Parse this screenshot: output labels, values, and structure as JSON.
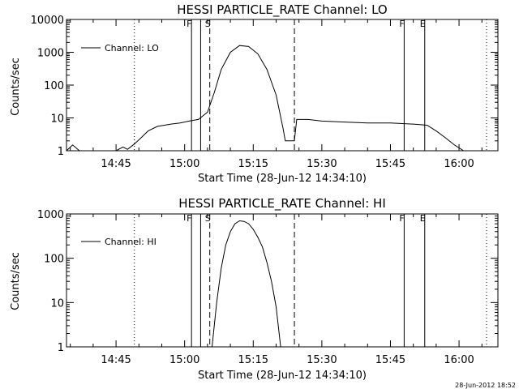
{
  "footer": {
    "timestamp": "28-Jun-2012 18:52"
  },
  "chart_data": [
    {
      "type": "line",
      "title": "HESSI PARTICLE_RATE Channel: LO",
      "xlabel": "Start Time (28-Jun-12 14:34:10)",
      "ylabel": "Counts/sec",
      "y_scale": "log",
      "xlim": [
        "14:34:10",
        "16:08:30"
      ],
      "ylim": [
        1,
        10000
      ],
      "x_ticks": [
        "14:45",
        "15:00",
        "15:15",
        "15:30",
        "15:45",
        "16:00"
      ],
      "y_ticks": [
        "1",
        "10",
        "100",
        "1000",
        "10000"
      ],
      "legend": {
        "placement": "top-left",
        "entries": [
          "Channel: LO"
        ]
      },
      "markers": [
        {
          "label": "F",
          "time": "15:01:30",
          "style": "solid"
        },
        {
          "label": "",
          "time": "15:03:30",
          "style": "solid"
        },
        {
          "label": "S",
          "time": "15:05:30",
          "style": "dashed"
        },
        {
          "label": "",
          "time": "15:24:00",
          "style": "dashed"
        },
        {
          "label": "F",
          "time": "15:48:00",
          "style": "solid"
        },
        {
          "label": "E",
          "time": "15:52:30",
          "style": "solid"
        },
        {
          "label": "",
          "time": "14:49:00",
          "style": "dotted"
        },
        {
          "label": "",
          "time": "16:06:00",
          "style": "dotted"
        }
      ],
      "series": [
        {
          "values": [
            [
              "14:34:10",
              1
            ],
            [
              "14:35:30",
              1.5
            ],
            [
              "14:37:00",
              1
            ],
            [
              "14:39:00",
              1
            ],
            [
              "14:41:00",
              1
            ],
            [
              "14:43:00",
              1
            ],
            [
              "14:45:00",
              1
            ],
            [
              "14:46:30",
              1.3
            ],
            [
              "14:47:30",
              1.1
            ],
            [
              "14:49:00",
              1.6
            ],
            [
              "14:50:30",
              2.5
            ],
            [
              "14:52:00",
              4
            ],
            [
              "14:54:00",
              5.5
            ],
            [
              "14:57:00",
              6.5
            ],
            [
              "14:59:00",
              7
            ],
            [
              "15:01:00",
              8
            ],
            [
              "15:03:00",
              9
            ],
            [
              "15:05:00",
              15
            ],
            [
              "15:06:30",
              60
            ],
            [
              "15:08:00",
              300
            ],
            [
              "15:10:00",
              1000
            ],
            [
              "15:12:00",
              1600
            ],
            [
              "15:14:00",
              1500
            ],
            [
              "15:16:00",
              900
            ],
            [
              "15:18:00",
              300
            ],
            [
              "15:20:00",
              50
            ],
            [
              "15:21:30",
              5
            ],
            [
              "15:22:00",
              2
            ],
            [
              "15:24:00",
              2
            ],
            [
              "15:24:30",
              9
            ],
            [
              "15:27:00",
              9
            ],
            [
              "15:30:00",
              8
            ],
            [
              "15:35:00",
              7.5
            ],
            [
              "15:40:00",
              7
            ],
            [
              "15:45:00",
              7
            ],
            [
              "15:50:00",
              6.5
            ],
            [
              "15:53:00",
              6
            ],
            [
              "15:55:00",
              4
            ],
            [
              "15:57:00",
              2.5
            ],
            [
              "15:59:00",
              1.5
            ],
            [
              "16:01:00",
              1
            ],
            [
              "16:04:00",
              1
            ],
            [
              "16:08:30",
              1
            ]
          ]
        }
      ]
    },
    {
      "type": "line",
      "title": "HESSI PARTICLE_RATE Channel: HI",
      "xlabel": "Start Time (28-Jun-12 14:34:10)",
      "ylabel": "Counts/sec",
      "y_scale": "log",
      "xlim": [
        "14:34:10",
        "16:08:30"
      ],
      "ylim": [
        1,
        1000
      ],
      "x_ticks": [
        "14:45",
        "15:00",
        "15:15",
        "15:30",
        "15:45",
        "16:00"
      ],
      "y_ticks": [
        "1",
        "10",
        "100",
        "1000"
      ],
      "legend": {
        "placement": "top-left",
        "entries": [
          "Channel: HI"
        ]
      },
      "markers": [
        {
          "label": "F",
          "time": "15:01:30",
          "style": "solid"
        },
        {
          "label": "",
          "time": "15:03:30",
          "style": "solid"
        },
        {
          "label": "S",
          "time": "15:05:30",
          "style": "dashed"
        },
        {
          "label": "",
          "time": "15:24:00",
          "style": "dashed"
        },
        {
          "label": "F",
          "time": "15:48:00",
          "style": "solid"
        },
        {
          "label": "E",
          "time": "15:52:30",
          "style": "solid"
        },
        {
          "label": "",
          "time": "14:49:00",
          "style": "dotted"
        },
        {
          "label": "",
          "time": "16:06:00",
          "style": "dotted"
        }
      ],
      "series": [
        {
          "values": [
            [
              "15:06:00",
              1
            ],
            [
              "15:07:00",
              10
            ],
            [
              "15:08:00",
              60
            ],
            [
              "15:09:00",
              200
            ],
            [
              "15:10:00",
              400
            ],
            [
              "15:11:00",
              600
            ],
            [
              "15:12:00",
              700
            ],
            [
              "15:13:00",
              680
            ],
            [
              "15:14:00",
              600
            ],
            [
              "15:15:00",
              450
            ],
            [
              "15:16:00",
              300
            ],
            [
              "15:17:00",
              180
            ],
            [
              "15:18:00",
              80
            ],
            [
              "15:19:00",
              30
            ],
            [
              "15:20:00",
              8
            ],
            [
              "15:21:00",
              1
            ]
          ]
        }
      ]
    }
  ]
}
